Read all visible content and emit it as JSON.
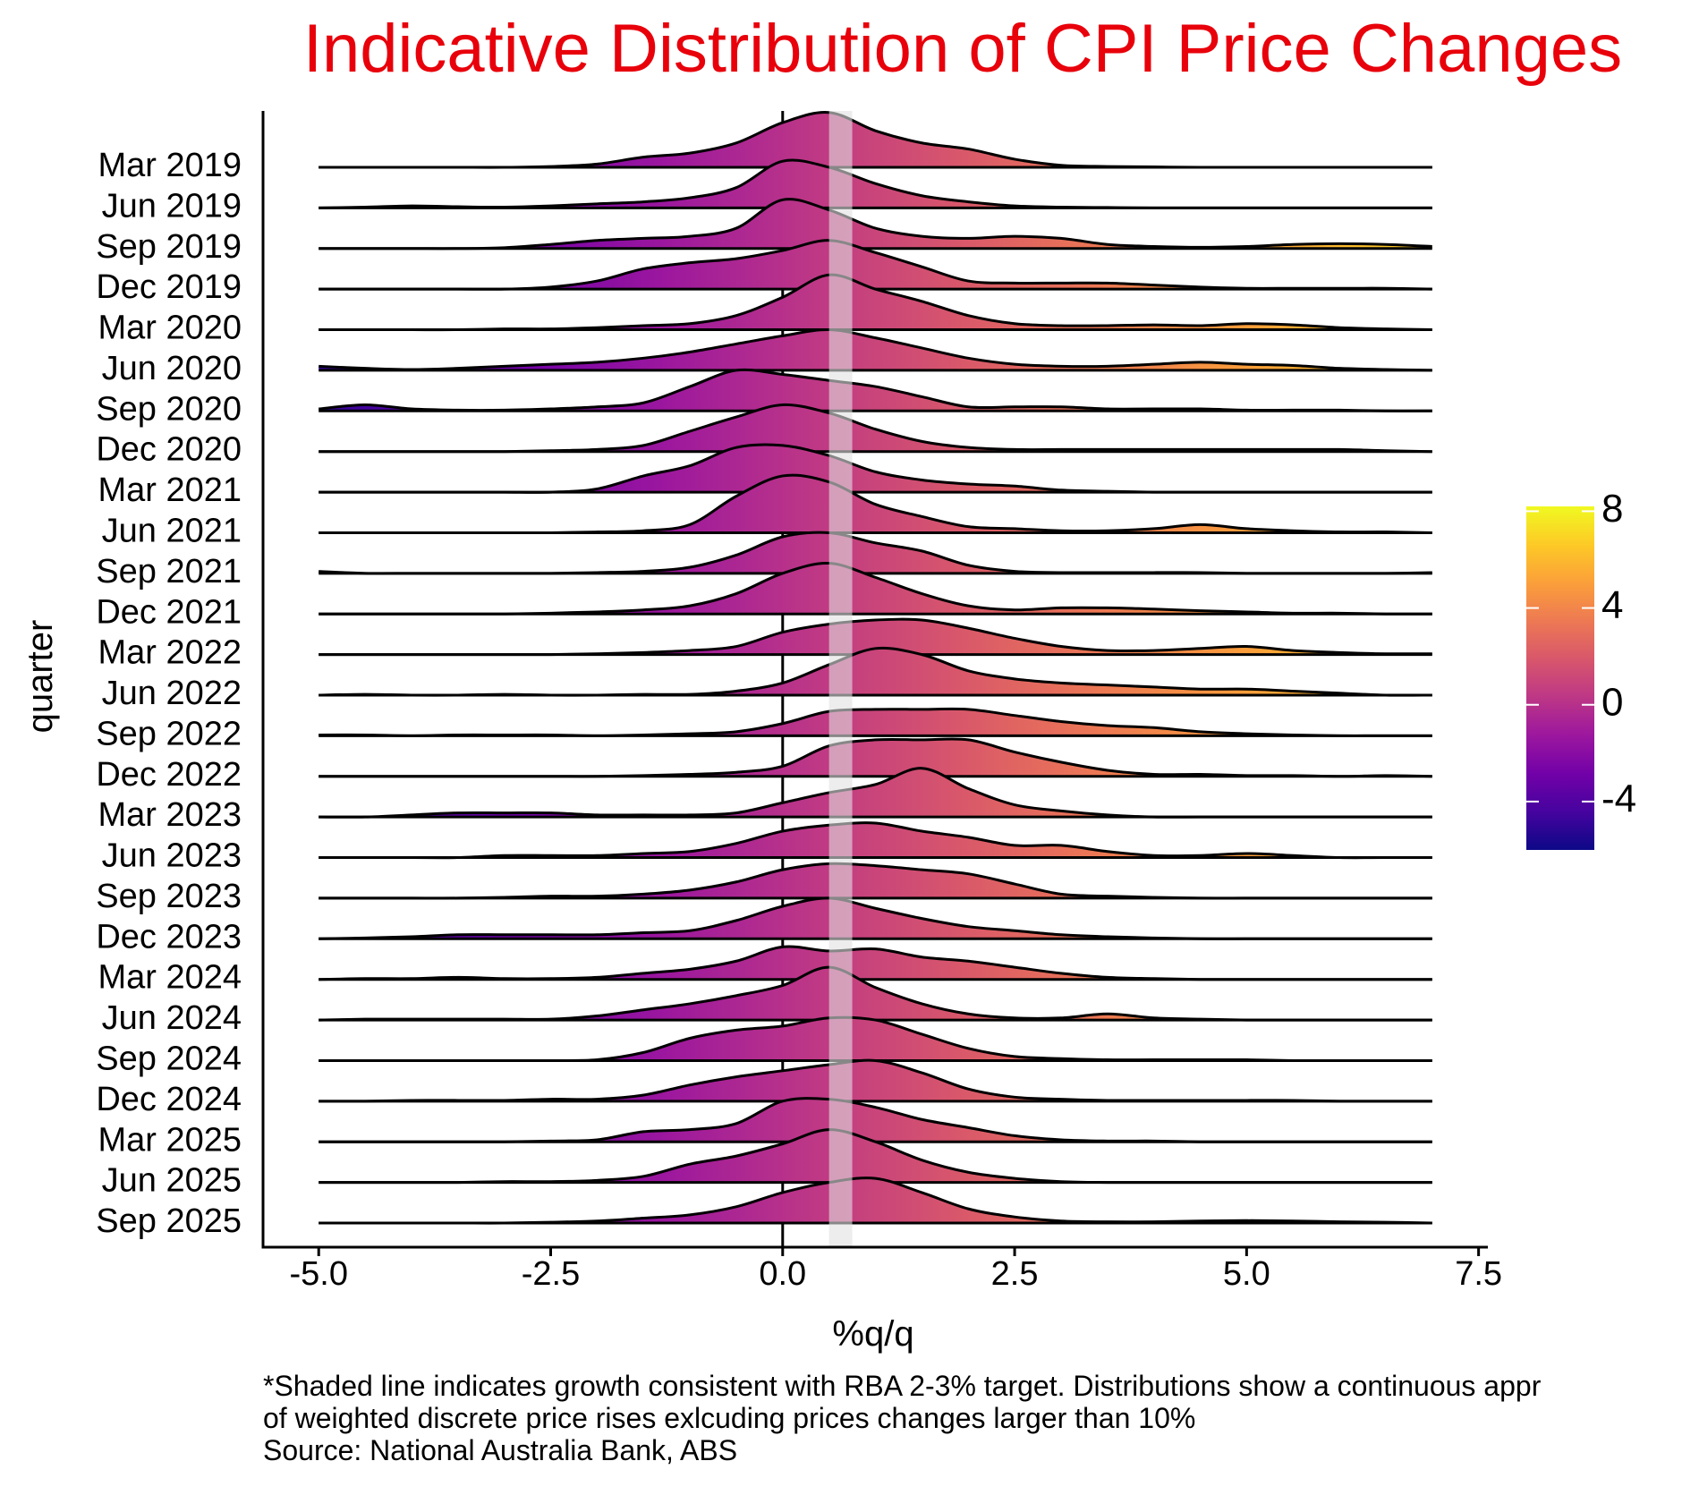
{
  "chart_data": {
    "type": "ridgeline",
    "title": "Indicative Distribution of CPI Price Changes",
    "x_label": "%q/q",
    "y_label": "quarter",
    "notes": [
      "*Shaded line indicates growth consistent with RBA 2-3% target. Distributions show a continuous appr",
      "of weighted discrete price rises exlcuding prices changes larger than 10%",
      "Source: National Australia Bank, ABS"
    ],
    "x": [
      -5,
      -4.5,
      -4,
      -3.5,
      -3,
      -2.5,
      -2,
      -1.5,
      -1,
      -0.5,
      0,
      0.5,
      1,
      1.5,
      2,
      2.5,
      3,
      3.5,
      4,
      4.5,
      5,
      5.5,
      6,
      6.5,
      7
    ],
    "xlim": [
      -5.6,
      7.6
    ],
    "xticks": [
      {
        "value": -5,
        "label": "-5.0"
      },
      {
        "value": -2.5,
        "label": "-2.5"
      },
      {
        "value": 0,
        "label": "0.0"
      },
      {
        "value": 2.5,
        "label": "2.5"
      },
      {
        "value": 5,
        "label": "5.0"
      },
      {
        "value": 7.5,
        "label": "7.5"
      }
    ],
    "reference_line": 0,
    "target_band": [
      0.5,
      0.75
    ],
    "colorscale": [
      "#0d0887",
      "#46039f",
      "#7201a8",
      "#9c179e",
      "#bd3786",
      "#d8576b",
      "#ed7953",
      "#fb9f3a",
      "#fdca26",
      "#f0f921"
    ],
    "colorbar_lim": [
      -6,
      8.2
    ],
    "colorbar_ticks": [
      -4,
      0,
      4,
      8
    ],
    "series": [
      {
        "name": "Mar 2019",
        "values": [
          0,
          0,
          0,
          0,
          0,
          0.02,
          0.08,
          0.25,
          0.35,
          0.6,
          1.1,
          1.35,
          0.9,
          0.6,
          0.45,
          0.2,
          0.05,
          0.02,
          0.01,
          0,
          0,
          0,
          0,
          0,
          0
        ]
      },
      {
        "name": "Jun 2019",
        "values": [
          0,
          0.02,
          0.05,
          0.03,
          0.02,
          0.05,
          0.1,
          0.15,
          0.25,
          0.5,
          1.15,
          1.0,
          0.6,
          0.3,
          0.15,
          0.05,
          0.02,
          0.01,
          0,
          0,
          0,
          0,
          0,
          0,
          0
        ]
      },
      {
        "name": "Sep 2019",
        "values": [
          0,
          0,
          0,
          0,
          0.02,
          0.1,
          0.2,
          0.25,
          0.3,
          0.5,
          1.2,
          0.95,
          0.5,
          0.3,
          0.25,
          0.3,
          0.25,
          0.1,
          0.05,
          0.03,
          0.05,
          0.1,
          0.12,
          0.1,
          0.05
        ]
      },
      {
        "name": "Dec 2019",
        "values": [
          0,
          0,
          0,
          0,
          0,
          0.05,
          0.2,
          0.5,
          0.65,
          0.75,
          0.95,
          1.2,
          0.9,
          0.55,
          0.2,
          0.15,
          0.15,
          0.15,
          0.1,
          0.05,
          0.02,
          0.02,
          0.02,
          0.02,
          0
        ]
      },
      {
        "name": "Mar 2020",
        "values": [
          0,
          0,
          0,
          0,
          0.02,
          0.02,
          0.05,
          0.1,
          0.15,
          0.35,
          0.8,
          1.35,
          1.0,
          0.7,
          0.35,
          0.15,
          0.1,
          0.1,
          0.12,
          0.1,
          0.15,
          0.12,
          0.05,
          0.02,
          0
        ]
      },
      {
        "name": "Jun 2020",
        "values": [
          0.1,
          0.05,
          0.02,
          0.05,
          0.1,
          0.15,
          0.2,
          0.3,
          0.45,
          0.65,
          0.85,
          1.0,
          0.8,
          0.55,
          0.3,
          0.15,
          0.1,
          0.1,
          0.15,
          0.2,
          0.15,
          0.12,
          0.05,
          0.02,
          0
        ]
      },
      {
        "name": "Sep 2020",
        "values": [
          0.05,
          0.15,
          0.05,
          0.02,
          0.02,
          0.05,
          0.1,
          0.2,
          0.6,
          1.0,
          0.9,
          0.75,
          0.6,
          0.35,
          0.1,
          0.1,
          0.1,
          0.05,
          0.05,
          0.05,
          0.02,
          0.02,
          0.02,
          0,
          0
        ]
      },
      {
        "name": "Dec 2020",
        "values": [
          0,
          0,
          0,
          0,
          0,
          0.02,
          0.05,
          0.15,
          0.5,
          0.85,
          1.15,
          0.95,
          0.55,
          0.25,
          0.1,
          0.05,
          0.05,
          0.05,
          0.05,
          0.05,
          0.05,
          0.05,
          0.05,
          0.02,
          0
        ]
      },
      {
        "name": "Mar 2021",
        "values": [
          0,
          0,
          0,
          0,
          0,
          0,
          0.08,
          0.4,
          0.65,
          1.1,
          1.15,
          0.9,
          0.5,
          0.3,
          0.2,
          0.15,
          0.05,
          0.02,
          0,
          0,
          0,
          0,
          0,
          0,
          0
        ]
      },
      {
        "name": "Jun 2021",
        "values": [
          0,
          0,
          0,
          0,
          0,
          0,
          0.02,
          0.05,
          0.2,
          0.9,
          1.4,
          1.25,
          0.7,
          0.4,
          0.15,
          0.1,
          0.05,
          0.05,
          0.1,
          0.2,
          0.1,
          0.05,
          0.02,
          0.02,
          0
        ]
      },
      {
        "name": "Sep 2021",
        "values": [
          0.05,
          0,
          0,
          0,
          0,
          0,
          0.02,
          0.05,
          0.15,
          0.45,
          0.9,
          1.0,
          0.75,
          0.55,
          0.2,
          0.05,
          0.02,
          0.02,
          0.02,
          0.02,
          0,
          0,
          0,
          0,
          0.02
        ]
      },
      {
        "name": "Dec 2021",
        "values": [
          0,
          0,
          0,
          0,
          0,
          0.02,
          0.05,
          0.1,
          0.2,
          0.5,
          1.0,
          1.25,
          0.9,
          0.5,
          0.2,
          0.1,
          0.15,
          0.15,
          0.12,
          0.08,
          0.05,
          0.02,
          0.02,
          0,
          0
        ]
      },
      {
        "name": "Mar 2022",
        "values": [
          0,
          0,
          0,
          0,
          0,
          0,
          0.02,
          0.05,
          0.1,
          0.2,
          0.55,
          0.75,
          0.85,
          0.85,
          0.65,
          0.4,
          0.2,
          0.1,
          0.1,
          0.15,
          0.2,
          0.1,
          0.05,
          0.02,
          0.02
        ]
      },
      {
        "name": "Jun 2022",
        "values": [
          0,
          0.02,
          0,
          0,
          0.02,
          0,
          0,
          0.02,
          0.02,
          0.1,
          0.3,
          0.75,
          1.15,
          1.0,
          0.6,
          0.4,
          0.3,
          0.25,
          0.2,
          0.15,
          0.15,
          0.1,
          0.05,
          0,
          0
        ]
      },
      {
        "name": "Sep 2022",
        "values": [
          0.02,
          0.02,
          0,
          0.02,
          0.02,
          0.02,
          0,
          0.02,
          0.05,
          0.1,
          0.3,
          0.6,
          0.65,
          0.65,
          0.65,
          0.5,
          0.35,
          0.25,
          0.2,
          0.1,
          0.05,
          0.02,
          0,
          0,
          0
        ]
      },
      {
        "name": "Dec 2022",
        "values": [
          0,
          0,
          0,
          0,
          0,
          0,
          0,
          0.02,
          0.05,
          0.1,
          0.25,
          0.75,
          0.9,
          0.9,
          0.9,
          0.6,
          0.35,
          0.15,
          0.05,
          0.05,
          0.02,
          0.02,
          0,
          0.02,
          0
        ]
      },
      {
        "name": "Mar 2023",
        "values": [
          0,
          0,
          0.05,
          0.1,
          0.1,
          0.1,
          0.05,
          0.05,
          0.05,
          0.1,
          0.35,
          0.6,
          0.8,
          1.2,
          0.7,
          0.3,
          0.15,
          0.05,
          0,
          0,
          0,
          0,
          0,
          0,
          0
        ]
      },
      {
        "name": "Jun 2023",
        "values": [
          0,
          0,
          0,
          0,
          0.05,
          0.05,
          0.05,
          0.1,
          0.15,
          0.35,
          0.65,
          0.8,
          0.85,
          0.65,
          0.5,
          0.3,
          0.3,
          0.15,
          0.05,
          0.05,
          0.1,
          0.05,
          0,
          0,
          0
        ]
      },
      {
        "name": "Sep 2023",
        "values": [
          0,
          0,
          0,
          0,
          0.02,
          0.05,
          0.05,
          0.1,
          0.2,
          0.4,
          0.7,
          0.85,
          0.8,
          0.7,
          0.6,
          0.35,
          0.1,
          0.05,
          0.02,
          0,
          0,
          0,
          0,
          0,
          0
        ]
      },
      {
        "name": "Dec 2023",
        "values": [
          0,
          0.02,
          0.05,
          0.1,
          0.1,
          0.1,
          0.1,
          0.15,
          0.2,
          0.45,
          0.8,
          1.0,
          0.75,
          0.5,
          0.3,
          0.2,
          0.1,
          0.05,
          0.02,
          0,
          0,
          0,
          0,
          0,
          0
        ]
      },
      {
        "name": "Mar 2024",
        "values": [
          0,
          0.02,
          0.02,
          0.05,
          0.02,
          0.02,
          0.05,
          0.15,
          0.25,
          0.45,
          0.8,
          0.7,
          0.75,
          0.55,
          0.45,
          0.3,
          0.15,
          0.05,
          0.02,
          0,
          0,
          0,
          0,
          0,
          0
        ]
      },
      {
        "name": "Jun 2024",
        "values": [
          0,
          0.02,
          0.02,
          0.02,
          0.02,
          0.02,
          0.1,
          0.25,
          0.4,
          0.6,
          0.85,
          1.3,
          0.8,
          0.4,
          0.15,
          0.05,
          0.05,
          0.15,
          0.05,
          0.02,
          0,
          0,
          0,
          0,
          0
        ]
      },
      {
        "name": "Sep 2024",
        "values": [
          0,
          0,
          0,
          0,
          0,
          0,
          0.02,
          0.2,
          0.55,
          0.75,
          0.85,
          1.05,
          1.0,
          0.65,
          0.3,
          0.1,
          0.05,
          0.02,
          0.02,
          0.02,
          0.02,
          0,
          0,
          0,
          0
        ]
      },
      {
        "name": "Dec 2024",
        "values": [
          0,
          0,
          0.02,
          0.02,
          0.02,
          0.05,
          0.05,
          0.15,
          0.4,
          0.6,
          0.75,
          0.9,
          1.0,
          0.7,
          0.3,
          0.1,
          0.05,
          0.02,
          0.02,
          0.02,
          0.02,
          0.02,
          0,
          0,
          0
        ]
      },
      {
        "name": "Mar 2025",
        "values": [
          0,
          0,
          0,
          0,
          0,
          0.02,
          0.05,
          0.25,
          0.3,
          0.45,
          1.0,
          1.05,
          0.85,
          0.55,
          0.35,
          0.15,
          0.05,
          0.02,
          0.02,
          0,
          0,
          0,
          0,
          0,
          0
        ]
      },
      {
        "name": "Jun 2025",
        "values": [
          0,
          0,
          0,
          0,
          0.02,
          0.02,
          0.05,
          0.15,
          0.45,
          0.65,
          0.95,
          1.3,
          1.0,
          0.55,
          0.25,
          0.1,
          0.02,
          0,
          0,
          0,
          0,
          0,
          0,
          0,
          0
        ]
      },
      {
        "name": "Sep 2025",
        "values": [
          0,
          0,
          0,
          0,
          0,
          0.02,
          0.05,
          0.12,
          0.2,
          0.4,
          0.75,
          1.0,
          1.1,
          0.75,
          0.35,
          0.15,
          0.05,
          0.03,
          0.03,
          0.05,
          0.06,
          0.05,
          0.03,
          0.02,
          0
        ]
      }
    ]
  }
}
